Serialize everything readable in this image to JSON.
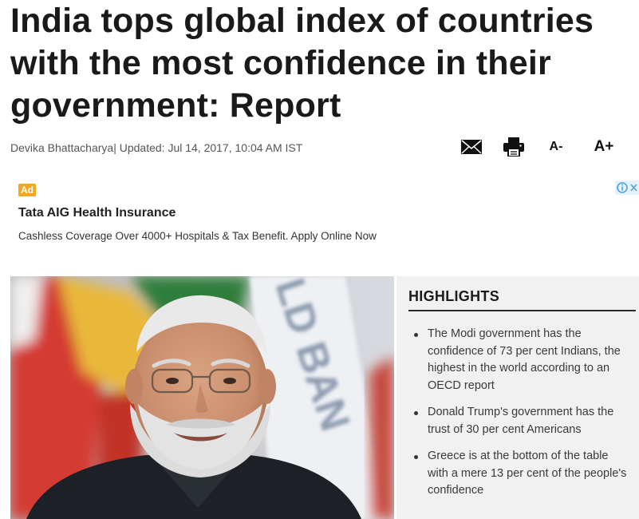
{
  "article": {
    "headline": "India tops global index of countries with the most confidence in their government: Report",
    "author": "Devika Bhattacharya",
    "separator": "|",
    "updated_label": "Updated:",
    "updated_time": "Jul 14, 2017, 10:04 AM IST"
  },
  "tools": {
    "mail_icon": "mail-icon",
    "print_icon": "printer-icon",
    "decrease_font_label": "A-",
    "increase_font_label": "A+"
  },
  "ad": {
    "badge": "Ad",
    "title": "Tata AIG Health Insurance",
    "description": "Cashless Coverage Over 4000+ Hospitals & Tax Benefit. Apply Online Now",
    "info_icon": "info-icon",
    "close_icon": "close-icon"
  },
  "photo": {
    "banner_text": "LD BAN"
  },
  "highlights": {
    "title": "HIGHLIGHTS",
    "items": [
      "The Modi government has the confidence of 73 per cent Indians, the highest in the world according to an OECD report",
      "Donald Trump's government has the trust of 30 per cent Americans",
      "Greece is at the bottom of the table with a mere 13 per cent of the people's confidence"
    ]
  },
  "colors": {
    "ad_badge": "#f5a623",
    "highlights_bg": "#f1f1f1",
    "ad_info_icon": "#4aa3df"
  }
}
